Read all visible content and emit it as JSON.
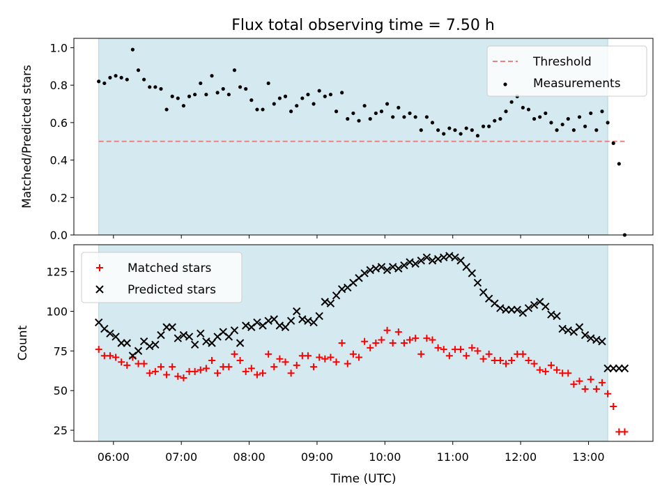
{
  "title": "Flux total observing time = 7.50 h",
  "xlabel": "Time (UTC)",
  "colors": {
    "shade": "#d4eaf0",
    "threshold": "#f08080",
    "measurements": "#000000",
    "matched": "#ff0000",
    "predicted": "#000000"
  },
  "chart_data": [
    {
      "type": "scatter",
      "panel": "top",
      "ylabel": "Matched/Predicted stars",
      "ylim": [
        0.0,
        1.05
      ],
      "yticks": [
        0.0,
        0.2,
        0.4,
        0.6,
        0.8,
        1.0
      ],
      "ytick_labels": [
        "0.0",
        "0.2",
        "0.4",
        "0.6",
        "0.8",
        "1.0"
      ],
      "legend_placement": "top-right",
      "legend": [
        "Threshold",
        "Measurements"
      ],
      "shaded_interval": [
        "05:47",
        "13:17"
      ],
      "threshold": {
        "name": "Threshold",
        "value": 0.5,
        "x_range": [
          "05:47",
          "13:32"
        ]
      },
      "series": [
        {
          "name": "Measurements",
          "x": [
            "05:47",
            "05:52",
            "05:57",
            "06:02",
            "06:07",
            "06:12",
            "06:17",
            "06:22",
            "06:27",
            "06:32",
            "06:37",
            "06:42",
            "06:47",
            "06:52",
            "06:57",
            "07:02",
            "07:07",
            "07:12",
            "07:17",
            "07:22",
            "07:27",
            "07:32",
            "07:37",
            "07:42",
            "07:47",
            "07:52",
            "07:57",
            "08:02",
            "08:07",
            "08:12",
            "08:17",
            "08:22",
            "08:27",
            "08:32",
            "08:37",
            "08:42",
            "08:47",
            "08:52",
            "08:57",
            "09:02",
            "09:07",
            "09:12",
            "09:17",
            "09:22",
            "09:27",
            "09:32",
            "09:37",
            "09:42",
            "09:47",
            "09:52",
            "09:57",
            "10:02",
            "10:07",
            "10:12",
            "10:17",
            "10:22",
            "10:27",
            "10:32",
            "10:37",
            "10:42",
            "10:47",
            "10:52",
            "10:57",
            "11:02",
            "11:07",
            "11:12",
            "11:17",
            "11:22",
            "11:27",
            "11:32",
            "11:37",
            "11:42",
            "11:47",
            "11:52",
            "11:57",
            "12:02",
            "12:07",
            "12:12",
            "12:17",
            "12:22",
            "12:27",
            "12:32",
            "12:37",
            "12:42",
            "12:47",
            "12:52",
            "12:57",
            "13:02",
            "13:07",
            "13:12",
            "13:17",
            "13:22",
            "13:27",
            "13:32"
          ],
          "y": [
            0.82,
            0.81,
            0.84,
            0.85,
            0.84,
            0.83,
            0.99,
            0.88,
            0.83,
            0.79,
            0.79,
            0.78,
            0.67,
            0.74,
            0.73,
            0.69,
            0.74,
            0.75,
            0.81,
            0.75,
            0.85,
            0.76,
            0.78,
            0.75,
            0.88,
            0.79,
            0.78,
            0.72,
            0.67,
            0.67,
            0.81,
            0.7,
            0.73,
            0.74,
            0.66,
            0.69,
            0.73,
            0.75,
            0.7,
            0.77,
            0.74,
            0.75,
            0.66,
            0.76,
            0.62,
            0.65,
            0.61,
            0.69,
            0.62,
            0.65,
            0.66,
            0.7,
            0.63,
            0.68,
            0.63,
            0.65,
            0.63,
            0.56,
            0.63,
            0.6,
            0.56,
            0.54,
            0.57,
            0.56,
            0.54,
            0.57,
            0.56,
            0.53,
            0.58,
            0.58,
            0.61,
            0.62,
            0.66,
            0.71,
            0.74,
            0.68,
            0.67,
            0.62,
            0.63,
            0.65,
            0.6,
            0.56,
            0.59,
            0.62,
            0.56,
            0.63,
            0.58,
            0.65,
            0.56,
            0.66,
            0.6,
            0.49,
            0.38,
            0.0
          ]
        }
      ]
    },
    {
      "type": "scatter",
      "panel": "bottom",
      "ylabel": "Count",
      "ylim": [
        18,
        142
      ],
      "yticks": [
        25,
        50,
        75,
        100,
        125
      ],
      "ytick_labels": [
        "25",
        "50",
        "75",
        "100",
        "125"
      ],
      "x_range": [
        "05:25",
        "13:57"
      ],
      "xticks": [
        "06:00",
        "07:00",
        "08:00",
        "09:00",
        "10:00",
        "11:00",
        "12:00",
        "13:00"
      ],
      "legend_placement": "top-left",
      "legend": [
        "Matched stars",
        "Predicted stars"
      ],
      "shaded_interval": [
        "05:47",
        "13:17"
      ],
      "series": [
        {
          "name": "Matched stars",
          "marker": "+",
          "x": [
            "05:47",
            "05:52",
            "05:57",
            "06:02",
            "06:07",
            "06:12",
            "06:17",
            "06:22",
            "06:27",
            "06:32",
            "06:37",
            "06:42",
            "06:47",
            "06:52",
            "06:57",
            "07:02",
            "07:07",
            "07:12",
            "07:17",
            "07:22",
            "07:27",
            "07:32",
            "07:37",
            "07:42",
            "07:47",
            "07:52",
            "07:57",
            "08:02",
            "08:07",
            "08:12",
            "08:17",
            "08:22",
            "08:27",
            "08:32",
            "08:37",
            "08:42",
            "08:47",
            "08:52",
            "08:57",
            "09:02",
            "09:07",
            "09:12",
            "09:17",
            "09:22",
            "09:27",
            "09:32",
            "09:37",
            "09:42",
            "09:47",
            "09:52",
            "09:57",
            "10:02",
            "10:07",
            "10:12",
            "10:17",
            "10:22",
            "10:27",
            "10:32",
            "10:37",
            "10:42",
            "10:47",
            "10:52",
            "10:57",
            "11:02",
            "11:07",
            "11:12",
            "11:17",
            "11:22",
            "11:27",
            "11:32",
            "11:37",
            "11:42",
            "11:47",
            "11:52",
            "11:57",
            "12:02",
            "12:07",
            "12:12",
            "12:17",
            "12:22",
            "12:27",
            "12:32",
            "12:37",
            "12:42",
            "12:47",
            "12:52",
            "12:57",
            "13:02",
            "13:07",
            "13:12",
            "13:17",
            "13:22",
            "13:27",
            "13:32"
          ],
          "y": [
            76,
            72,
            72,
            71,
            68,
            66,
            71,
            67,
            67,
            61,
            62,
            65,
            60,
            65,
            59,
            58,
            62,
            62,
            63,
            64,
            69,
            61,
            65,
            65,
            73,
            69,
            62,
            64,
            60,
            61,
            73,
            65,
            70,
            68,
            61,
            66,
            72,
            72,
            65,
            71,
            70,
            71,
            68,
            80,
            67,
            73,
            71,
            81,
            77,
            80,
            82,
            88,
            80,
            87,
            80,
            82,
            83,
            73,
            83,
            82,
            77,
            76,
            72,
            76,
            76,
            72,
            77,
            75,
            70,
            73,
            69,
            69,
            67,
            69,
            73,
            73,
            69,
            67,
            63,
            62,
            66,
            63,
            61,
            61,
            54,
            56,
            51,
            57,
            51,
            55,
            48,
            40,
            24,
            24
          ]
        },
        {
          "name": "Predicted stars",
          "marker": "x",
          "x": [
            "05:47",
            "05:52",
            "05:57",
            "06:02",
            "06:07",
            "06:12",
            "06:17",
            "06:22",
            "06:27",
            "06:32",
            "06:37",
            "06:42",
            "06:47",
            "06:52",
            "06:57",
            "07:02",
            "07:07",
            "07:12",
            "07:17",
            "07:22",
            "07:27",
            "07:32",
            "07:37",
            "07:42",
            "07:47",
            "07:52",
            "07:57",
            "08:02",
            "08:07",
            "08:12",
            "08:17",
            "08:22",
            "08:27",
            "08:32",
            "08:37",
            "08:42",
            "08:47",
            "08:52",
            "08:57",
            "09:02",
            "09:07",
            "09:12",
            "09:17",
            "09:22",
            "09:27",
            "09:32",
            "09:37",
            "09:42",
            "09:47",
            "09:52",
            "09:57",
            "10:02",
            "10:07",
            "10:12",
            "10:17",
            "10:22",
            "10:27",
            "10:32",
            "10:37",
            "10:42",
            "10:47",
            "10:52",
            "10:57",
            "11:02",
            "11:07",
            "11:12",
            "11:17",
            "11:22",
            "11:27",
            "11:32",
            "11:37",
            "11:42",
            "11:47",
            "11:52",
            "11:57",
            "12:02",
            "12:07",
            "12:12",
            "12:17",
            "12:22",
            "12:27",
            "12:32",
            "12:37",
            "12:42",
            "12:47",
            "12:52",
            "12:57",
            "13:02",
            "13:07",
            "13:12",
            "13:17",
            "13:22",
            "13:27",
            "13:32"
          ],
          "y": [
            93,
            89,
            86,
            84,
            80,
            80,
            72,
            75,
            81,
            78,
            79,
            85,
            90,
            90,
            83,
            85,
            84,
            79,
            86,
            81,
            80,
            84,
            87,
            84,
            88,
            80,
            91,
            90,
            93,
            91,
            94,
            95,
            91,
            90,
            94,
            100,
            95,
            94,
            93,
            97,
            106,
            105,
            110,
            114,
            115,
            118,
            121,
            124,
            126,
            127,
            128,
            126,
            128,
            127,
            129,
            131,
            130,
            132,
            134,
            132,
            133,
            134,
            135,
            134,
            132,
            128,
            124,
            118,
            112,
            108,
            105,
            102,
            101,
            101,
            101,
            99,
            102,
            104,
            106,
            103,
            98,
            97,
            89,
            88,
            87,
            90,
            85,
            83,
            82,
            81,
            64,
            64,
            64,
            64
          ]
        }
      ]
    }
  ]
}
